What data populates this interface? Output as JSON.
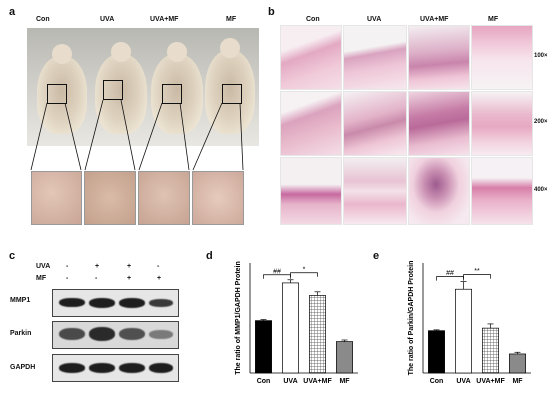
{
  "panels": {
    "a": {
      "letter": "a",
      "groups": [
        "Con",
        "UVA",
        "UVA+MF",
        "MF"
      ]
    },
    "b": {
      "letter": "b",
      "groups": [
        "Con",
        "UVA",
        "UVA+MF",
        "MF"
      ],
      "magnifications": [
        "100×",
        "200×",
        "400×"
      ]
    },
    "c": {
      "letter": "c",
      "treatment_rows": [
        {
          "name": "UVA",
          "marks": [
            "-",
            "+",
            "+",
            "-"
          ]
        },
        {
          "name": "MF",
          "marks": [
            "-",
            "-",
            "+",
            "+"
          ]
        }
      ],
      "proteins": [
        "MMP1",
        "Parkin",
        "GAPDH"
      ]
    },
    "d": {
      "letter": "d"
    },
    "e": {
      "letter": "e"
    }
  },
  "chart_data": [
    {
      "type": "bar",
      "ylabel": "The ratio of MMP1/GAPDH Protein",
      "categories": [
        "Con",
        "UVA",
        "UVA+MF",
        "MF"
      ],
      "values": [
        1.0,
        1.72,
        1.48,
        0.6
      ],
      "errors": [
        0.02,
        0.06,
        0.07,
        0.03
      ],
      "ylim": [
        0,
        2.1
      ],
      "fills": [
        "black",
        "white",
        "grid",
        "gray"
      ],
      "significance": [
        {
          "between": [
            "Con",
            "UVA"
          ],
          "label": "##"
        },
        {
          "between": [
            "UVA",
            "UVA+MF"
          ],
          "label": "*"
        }
      ]
    },
    {
      "type": "bar",
      "ylabel": "The ratio of Parkin/GAPDH Protein",
      "categories": [
        "Con",
        "UVA",
        "UVA+MF",
        "MF"
      ],
      "values": [
        1.0,
        1.98,
        1.06,
        0.45
      ],
      "errors": [
        0.02,
        0.18,
        0.1,
        0.04
      ],
      "ylim": [
        0,
        2.6
      ],
      "fills": [
        "black",
        "white",
        "grid",
        "gray"
      ],
      "significance": [
        {
          "between": [
            "Con",
            "UVA"
          ],
          "label": "##"
        },
        {
          "between": [
            "UVA",
            "UVA+MF"
          ],
          "label": "**"
        }
      ]
    }
  ]
}
